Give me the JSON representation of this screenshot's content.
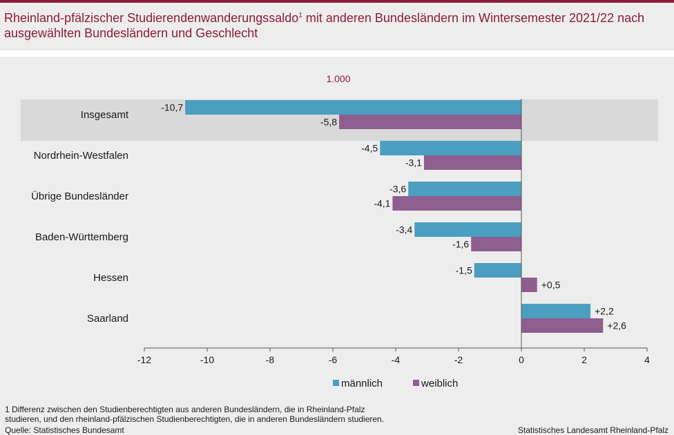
{
  "title": {
    "text": "Rheinland-pfälzischer Studierendenwanderungssaldo",
    "footnote_mark": "1",
    "text_rest": " mit anderen Bundesländern im Wintersemester 2021/22 nach ausgewählten Bundesländern und Geschlecht"
  },
  "unit_label": "1.000",
  "colors": {
    "brand": "#8b1c3a",
    "maennlich": "#4a9fc0",
    "weiblich": "#8e5e90",
    "highlight_band": "#d9d9d9"
  },
  "chart_data": {
    "type": "bar",
    "orientation": "horizontal",
    "categories": [
      "Insgesamt",
      "Nordrhein-Westfalen",
      "Übrige Bundesländer",
      "Baden-Württemberg",
      "Hessen",
      "Saarland"
    ],
    "highlight_category": "Insgesamt",
    "series": [
      {
        "name": "männlich",
        "color": "#4a9fc0",
        "values": [
          -10.7,
          -4.5,
          -3.6,
          -3.4,
          -1.5,
          2.2
        ],
        "labels": [
          "-10,7",
          "-4,5",
          "-3,6",
          "-3,4",
          "-1,5",
          "+2,2"
        ]
      },
      {
        "name": "weiblich",
        "color": "#8e5e90",
        "values": [
          -5.8,
          -3.1,
          -4.1,
          -1.6,
          0.5,
          2.6
        ],
        "labels": [
          "-5,8",
          "-3,1",
          "-4,1",
          "-1,6",
          "+0,5",
          "+2,6"
        ]
      }
    ],
    "xlim": [
      -12,
      4
    ],
    "xticks": [
      -12,
      -10,
      -8,
      -6,
      -4,
      -2,
      0,
      2,
      4
    ],
    "xtick_labels": [
      "-12",
      "-10",
      "-8",
      "-6",
      "-4",
      "-2",
      "0",
      "2",
      "4"
    ],
    "legend_position": "bottom",
    "grid": false
  },
  "footnote": {
    "line1": "1 Differenz  zwischen den Studienberechtigten  aus anderen  Bundesländern,  die in Rheinland-Pfalz",
    "line2": "studieren,  und den rheinland-pfälzischen  Studienberechtigten,  die in anderen  Bundesländern  studieren."
  },
  "source": "Quelle:  Statistisches Bundesamt",
  "publisher": "Statistisches Landesamt  Rheinland-Pfalz"
}
